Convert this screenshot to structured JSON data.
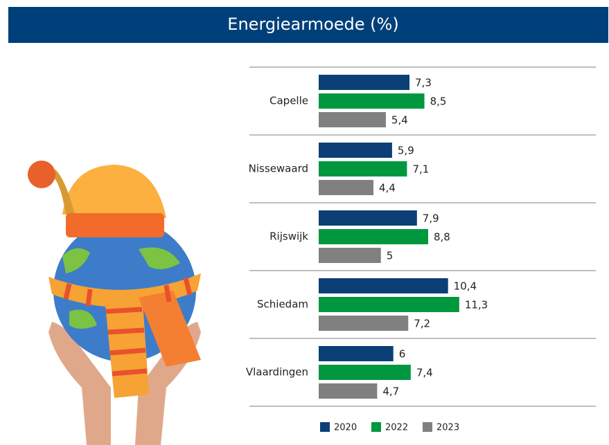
{
  "chart_data": {
    "type": "hbar",
    "title": "Energiearmoede (%)",
    "categories": [
      "Capelle",
      "Nissewaard",
      "Rijswijk",
      "Schiedam",
      "Vlaardingen"
    ],
    "series": [
      {
        "name": "2020",
        "color": "#0b3f76",
        "values": [
          7.3,
          5.9,
          7.9,
          10.4,
          6
        ],
        "value_labels": [
          "7,3",
          "5,9",
          "7,9",
          "10,4",
          "6"
        ]
      },
      {
        "name": "2022",
        "color": "#00973f",
        "values": [
          8.5,
          7.1,
          8.8,
          11.3,
          7.4
        ],
        "value_labels": [
          "8,5",
          "7,1",
          "8,8",
          "11,3",
          "7,4"
        ]
      },
      {
        "name": "2023",
        "color": "#808080",
        "values": [
          5.4,
          4.4,
          5,
          7.2,
          4.7
        ],
        "value_labels": [
          "5,4",
          "4,4",
          "5",
          "7,2",
          "4,7"
        ]
      }
    ],
    "legend": "bottom"
  }
}
